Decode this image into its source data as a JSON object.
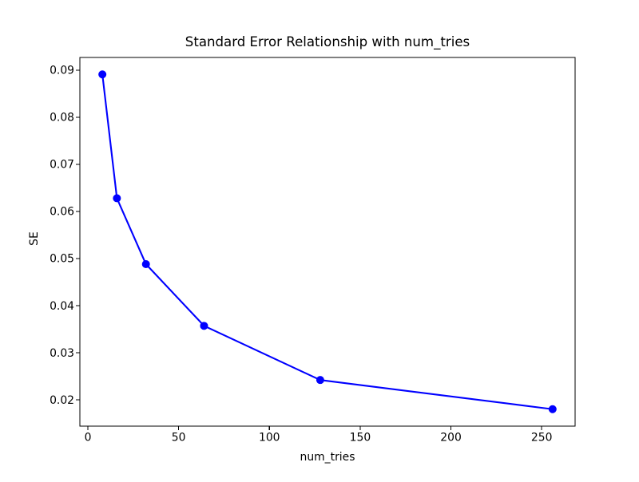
{
  "figure": {
    "background": "#ffffff",
    "axes_color": "#000000"
  },
  "chart_data": {
    "type": "line",
    "title": "Standard Error Relationship with num_tries",
    "xlabel": "num_tries",
    "ylabel": "SE",
    "x": [
      8,
      16,
      32,
      64,
      128,
      256
    ],
    "y": [
      0.0891,
      0.0628,
      0.0488,
      0.0357,
      0.0242,
      0.018
    ],
    "line_color": "#0000ff",
    "marker": "circle",
    "grid": false,
    "legend": null,
    "xlim": [
      -4.4,
      268.4
    ],
    "ylim": [
      0.0144,
      0.0927
    ],
    "xticks": [
      0,
      50,
      100,
      150,
      200,
      250
    ],
    "yticks": [
      0.02,
      0.03,
      0.04,
      0.05,
      0.06,
      0.07,
      0.08,
      0.09
    ],
    "xtick_labels": [
      "0",
      "50",
      "100",
      "150",
      "200",
      "250"
    ],
    "ytick_labels": [
      "0.02",
      "0.03",
      "0.04",
      "0.05",
      "0.06",
      "0.07",
      "0.08",
      "0.09"
    ]
  }
}
